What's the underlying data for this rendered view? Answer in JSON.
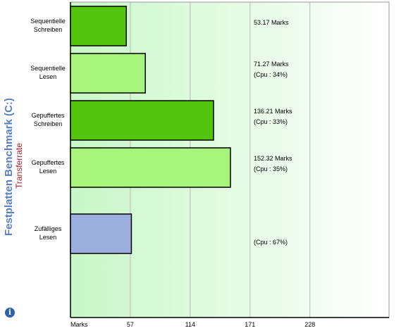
{
  "page": {
    "title": "Festplatten Benchmark (C:)",
    "subtitle": "Transferrate",
    "info_glyph": "i"
  },
  "colors": {
    "title": "#5b7fc0",
    "subtitle": "#b0202a",
    "bar_dark": "#52c60c",
    "bar_light": "#a7f57c",
    "bar_blue": "#9bb0dc",
    "plot_bg_start": "#c8f7c8",
    "plot_bg_end": "#ffffff"
  },
  "chart_data": {
    "type": "bar",
    "orientation": "horizontal",
    "x_unit": "Marks",
    "xlim": [
      0,
      304
    ],
    "x_ticks": [
      57,
      114,
      171,
      228
    ],
    "grid": "vertical",
    "categories": [
      [
        "Sequentielle",
        "Schreiben"
      ],
      [
        "Sequentielle",
        "Lesen"
      ],
      [
        "Gepuffertes",
        "Schreiben"
      ],
      [
        "Gepuffertes",
        "Lesen"
      ],
      [
        "Zufälliges",
        "Lesen"
      ]
    ],
    "values": [
      53.17,
      71.27,
      136.21,
      152.32,
      58
    ],
    "bar_colors": [
      "dark",
      "light",
      "dark",
      "light",
      "blue"
    ],
    "value_labels": [
      [
        "53.17 Marks"
      ],
      [
        "71.27 Marks",
        "(Cpu : 34%)"
      ],
      [
        "136.21 Marks",
        "(Cpu : 33%)"
      ],
      [
        "152.32 Marks",
        "(Cpu : 35%)"
      ],
      [
        "(Cpu : 67%)"
      ]
    ]
  }
}
